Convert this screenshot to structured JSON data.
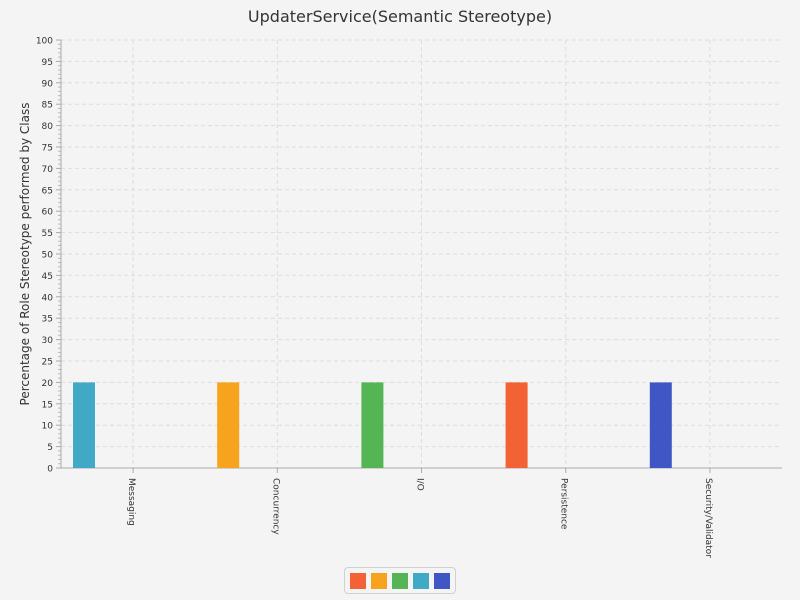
{
  "chart_data": {
    "type": "bar",
    "title": "UpdaterService(Semantic Stereotype)",
    "ylabel": "Percentage of Role Stereotype performed by Class",
    "xlabel": "",
    "ylim": [
      0,
      100
    ],
    "ytick_step": 5,
    "grid": true,
    "categories": [
      "Messaging",
      "Concurrency",
      "I/O",
      "Persistence",
      "Security/Validator"
    ],
    "values": [
      20,
      20,
      20,
      20,
      20
    ],
    "bar_colors": [
      "#41a8c6",
      "#f8a31d",
      "#55b555",
      "#f36234",
      "#4156c5"
    ],
    "legend": {
      "placement": "bottom-center",
      "swatches": [
        "#f36234",
        "#f8a31d",
        "#55b555",
        "#41a8c6",
        "#4156c5"
      ]
    }
  }
}
